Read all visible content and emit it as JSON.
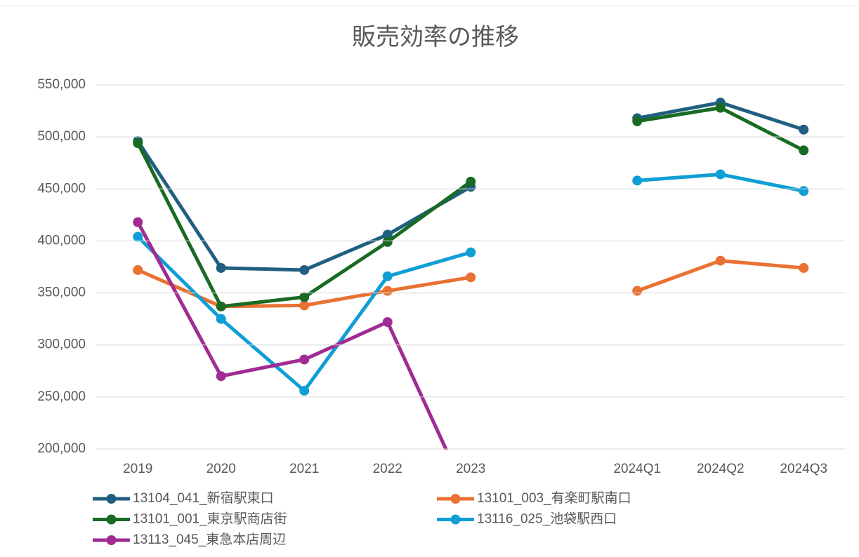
{
  "chart_data": {
    "type": "line",
    "title": "販売効率の推移",
    "categories": [
      "2019",
      "2020",
      "2021",
      "2022",
      "2023",
      null,
      "2024Q1",
      "2024Q2",
      "2024Q3"
    ],
    "series": [
      {
        "name": "13104_041_新宿駅東口",
        "color": "#215f80",
        "values": [
          496000,
          374000,
          372000,
          406000,
          452000,
          null,
          518000,
          533000,
          507000
        ]
      },
      {
        "name": "13101_003_有楽町駅南口",
        "color": "#e97132",
        "values": [
          372000,
          337000,
          338000,
          352000,
          365000,
          null,
          352000,
          381000,
          374000
        ]
      },
      {
        "name": "13101_001_東京駅商店街",
        "color": "#196b24",
        "values": [
          494000,
          337000,
          346000,
          399000,
          457000,
          null,
          515000,
          528000,
          487000
        ]
      },
      {
        "name": "13116_025_池袋駅西口",
        "color": "#0f9ed5",
        "values": [
          404000,
          325000,
          256000,
          366000,
          389000,
          null,
          458000,
          464000,
          448000
        ]
      },
      {
        "name": "13113_045_東急本店周辺",
        "color": "#a02b93",
        "values": [
          418000,
          270000,
          286000,
          322000,
          148000,
          null,
          null,
          null,
          null
        ]
      }
    ],
    "ylim": [
      200000,
      550000
    ],
    "yticks": [
      {
        "value": 200000,
        "label": "200,000"
      },
      {
        "value": 250000,
        "label": "250,000"
      },
      {
        "value": 300000,
        "label": "300,000"
      },
      {
        "value": 350000,
        "label": "350,000"
      },
      {
        "value": 400000,
        "label": "400,000"
      },
      {
        "value": 450000,
        "label": "450,000"
      },
      {
        "value": 500000,
        "label": "500,000"
      },
      {
        "value": 550000,
        "label": "550,000"
      }
    ],
    "grid": true
  }
}
